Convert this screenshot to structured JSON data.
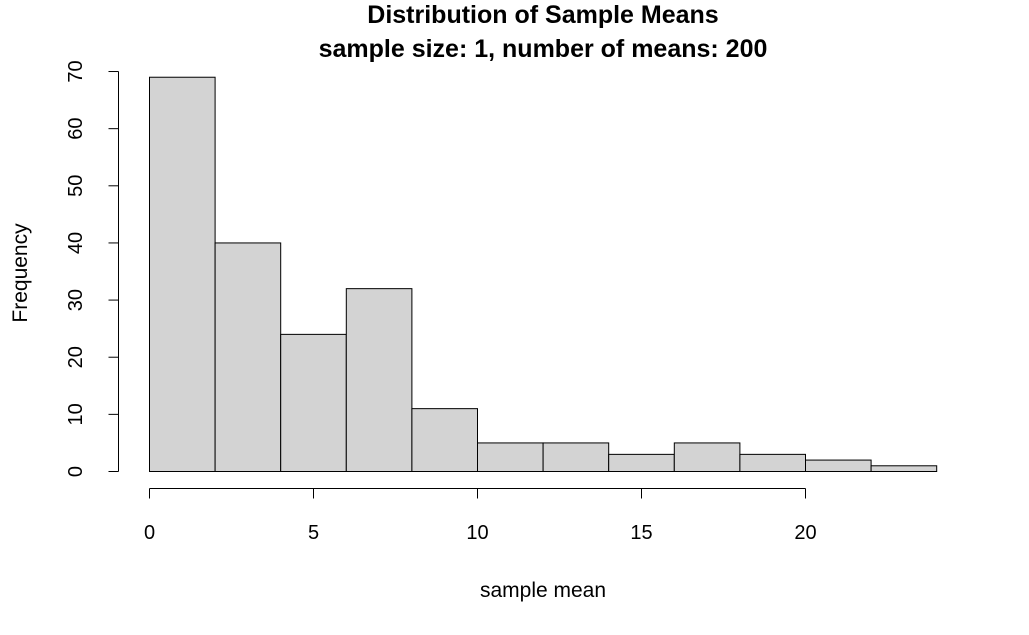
{
  "chart_data": {
    "type": "bar",
    "title": "Distribution of Sample Means",
    "subtitle": "sample size: 1, number of means: 200",
    "xlabel": "sample mean",
    "ylabel": "Frequency",
    "bins": [
      {
        "start": 0,
        "end": 2,
        "count": 69
      },
      {
        "start": 2,
        "end": 4,
        "count": 40
      },
      {
        "start": 4,
        "end": 6,
        "count": 24
      },
      {
        "start": 6,
        "end": 8,
        "count": 32
      },
      {
        "start": 8,
        "end": 10,
        "count": 11
      },
      {
        "start": 10,
        "end": 12,
        "count": 5
      },
      {
        "start": 12,
        "end": 14,
        "count": 5
      },
      {
        "start": 14,
        "end": 16,
        "count": 3
      },
      {
        "start": 16,
        "end": 18,
        "count": 5
      },
      {
        "start": 18,
        "end": 20,
        "count": 3
      },
      {
        "start": 20,
        "end": 22,
        "count": 2
      },
      {
        "start": 22,
        "end": 24,
        "count": 1
      }
    ],
    "x_ticks": [
      "0",
      "5",
      "10",
      "15",
      "20"
    ],
    "y_ticks": [
      "0",
      "10",
      "20",
      "30",
      "40",
      "50",
      "60",
      "70"
    ],
    "xlim": [
      0,
      24
    ],
    "ylim": [
      0,
      70
    ],
    "fill_color": "#d3d3d3",
    "grid": false
  }
}
